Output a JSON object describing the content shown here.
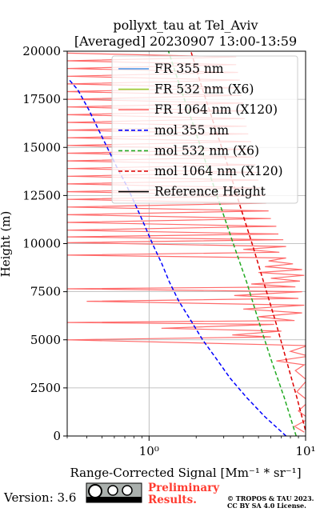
{
  "chart_data": {
    "type": "line",
    "title": "pollyxt_tau at Tel_Aviv",
    "subtitle": "[Averaged] 20230907 13:00-13:59",
    "xlabel": "Range-Corrected Signal [Mm⁻¹ * sr⁻¹]",
    "ylabel": "Height (m)",
    "x_scale": "log",
    "xlim": [
      0.3,
      10
    ],
    "ylim": [
      0,
      20000
    ],
    "x_ticks": [
      1,
      10
    ],
    "x_tick_labels": [
      "10⁰",
      "10¹"
    ],
    "y_ticks": [
      0,
      2500,
      5000,
      7500,
      10000,
      12500,
      15000,
      17500,
      20000
    ],
    "y_tick_labels": [
      "0",
      "2500",
      "5000",
      "7500",
      "10000",
      "12500",
      "15000",
      "17500",
      "20000"
    ],
    "grid": true,
    "legend_position": "top-right",
    "series": [
      {
        "name": "FR 355 nm",
        "color": "#4a90e2",
        "style": "solid",
        "points": []
      },
      {
        "name": "FR 532 nm (X6)",
        "color": "#9acd32",
        "style": "solid",
        "points": []
      },
      {
        "name": "FR 1064 nm (X120)",
        "color": "#ff6b6b",
        "style": "solid",
        "points": [
          [
            9.8,
            200
          ],
          [
            8.5,
            500
          ],
          [
            10.5,
            900
          ],
          [
            9.0,
            1300
          ],
          [
            10.5,
            1800
          ],
          [
            8.8,
            2300
          ],
          [
            10.2,
            2900
          ],
          [
            8.6,
            3400
          ],
          [
            9.8,
            3700
          ],
          [
            6.5,
            3900
          ],
          [
            10.5,
            4150
          ],
          [
            8.0,
            4400
          ],
          [
            10.3,
            4700
          ],
          [
            0.3,
            5000
          ],
          [
            6.0,
            5150
          ],
          [
            3.4,
            5250
          ],
          [
            7.0,
            5450
          ],
          [
            1.2,
            5600
          ],
          [
            6.3,
            5800
          ],
          [
            0.3,
            5900
          ],
          [
            8.5,
            6000
          ],
          [
            5.0,
            6200
          ],
          [
            9.5,
            6400
          ],
          [
            4.0,
            6600
          ],
          [
            9.8,
            6800
          ],
          [
            0.4,
            7000
          ],
          [
            9.0,
            7150
          ],
          [
            3.5,
            7300
          ],
          [
            9.5,
            7500
          ],
          [
            0.3,
            7650
          ],
          [
            8.6,
            7750
          ],
          [
            4.5,
            7900
          ],
          [
            9.2,
            8050
          ],
          [
            6.0,
            8200
          ],
          [
            9.8,
            8350
          ],
          [
            5.0,
            8500
          ],
          [
            9.5,
            8650
          ],
          [
            5.5,
            8800
          ],
          [
            8.3,
            8950
          ],
          [
            5.8,
            9100
          ],
          [
            7.5,
            9250
          ],
          [
            0.3,
            9400
          ],
          [
            6.8,
            9550
          ],
          [
            4.0,
            9700
          ],
          [
            7.5,
            9850
          ],
          [
            0.3,
            10050
          ],
          [
            7.2,
            10200
          ],
          [
            0.3,
            10350
          ],
          [
            6.7,
            10500
          ],
          [
            0.3,
            10700
          ],
          [
            6.5,
            10900
          ],
          [
            0.3,
            11100
          ],
          [
            6.0,
            11300
          ],
          [
            0.3,
            11500
          ],
          [
            5.8,
            11700
          ],
          [
            0.3,
            11900
          ],
          [
            5.6,
            12100
          ],
          [
            0.3,
            12300
          ],
          [
            5.5,
            12500
          ],
          [
            0.3,
            12700
          ],
          [
            5.2,
            12900
          ],
          [
            0.3,
            13100
          ],
          [
            5.0,
            13300
          ],
          [
            0.3,
            13500
          ],
          [
            5.0,
            13700
          ],
          [
            0.3,
            13900
          ],
          [
            4.8,
            14100
          ],
          [
            0.3,
            14300
          ],
          [
            4.7,
            14500
          ],
          [
            0.3,
            14700
          ],
          [
            4.6,
            14900
          ],
          [
            0.3,
            15100
          ],
          [
            4.5,
            15300
          ],
          [
            0.3,
            15500
          ],
          [
            4.3,
            15700
          ],
          [
            0.3,
            15900
          ],
          [
            4.2,
            16100
          ],
          [
            0.3,
            16300
          ],
          [
            4.1,
            16500
          ],
          [
            0.3,
            16700
          ],
          [
            4.0,
            16900
          ],
          [
            0.3,
            17100
          ],
          [
            4.0,
            17300
          ],
          [
            0.3,
            17500
          ],
          [
            3.9,
            17700
          ],
          [
            0.3,
            17900
          ],
          [
            3.8,
            18100
          ],
          [
            0.3,
            18300
          ],
          [
            3.8,
            18500
          ],
          [
            0.3,
            18700
          ],
          [
            3.7,
            18900
          ],
          [
            0.3,
            19100
          ],
          [
            3.6,
            19300
          ],
          [
            0.3,
            19500
          ],
          [
            3.6,
            19700
          ],
          [
            0.3,
            19900
          ]
        ]
      },
      {
        "name": "mol 355 nm",
        "color": "#0000ff",
        "style": "dashed",
        "points": [
          [
            7.5,
            0
          ],
          [
            5.5,
            1000
          ],
          [
            4.2,
            2000
          ],
          [
            3.3,
            3000
          ],
          [
            2.7,
            4000
          ],
          [
            2.2,
            5000
          ],
          [
            1.85,
            6000
          ],
          [
            1.55,
            7000
          ],
          [
            1.35,
            8000
          ],
          [
            1.2,
            9000
          ],
          [
            1.05,
            10000
          ],
          [
            0.93,
            11000
          ],
          [
            0.82,
            12000
          ],
          [
            0.72,
            13000
          ],
          [
            0.62,
            14000
          ],
          [
            0.54,
            15000
          ],
          [
            0.47,
            16000
          ],
          [
            0.41,
            17000
          ],
          [
            0.35,
            18000
          ],
          [
            0.31,
            18500
          ]
        ]
      },
      {
        "name": "mol 532 nm (X6)",
        "color": "#22aa22",
        "style": "dashed",
        "points": [
          [
            8.7,
            0
          ],
          [
            7.3,
            2000
          ],
          [
            6.0,
            4000
          ],
          [
            5.0,
            6000
          ],
          [
            4.2,
            8000
          ],
          [
            3.45,
            10000
          ],
          [
            2.85,
            12000
          ],
          [
            2.35,
            14000
          ],
          [
            1.95,
            16000
          ],
          [
            1.6,
            18000
          ],
          [
            1.33,
            20000
          ]
        ]
      },
      {
        "name": "mol 1064 nm (X120)",
        "color": "#dd0000",
        "style": "dashed",
        "points": [
          [
            10.2,
            0
          ],
          [
            8.8,
            2000
          ],
          [
            7.5,
            4000
          ],
          [
            6.4,
            6000
          ],
          [
            5.4,
            8000
          ],
          [
            4.55,
            10000
          ],
          [
            3.8,
            12000
          ],
          [
            3.2,
            14000
          ],
          [
            2.65,
            16000
          ],
          [
            2.2,
            18000
          ],
          [
            1.85,
            20000
          ]
        ]
      },
      {
        "name": "Reference Height",
        "color": "#000000",
        "style": "solid",
        "points": []
      }
    ]
  },
  "footer": {
    "version": "Version: 3.6",
    "license_badge": "cc-by-sa-badge",
    "preliminary_line1": "Preliminary",
    "preliminary_line2": "Results.",
    "copyright_line1": "© TROPOS & TAU 2023.",
    "copyright_line2": "CC BY SA 4.0 License."
  }
}
